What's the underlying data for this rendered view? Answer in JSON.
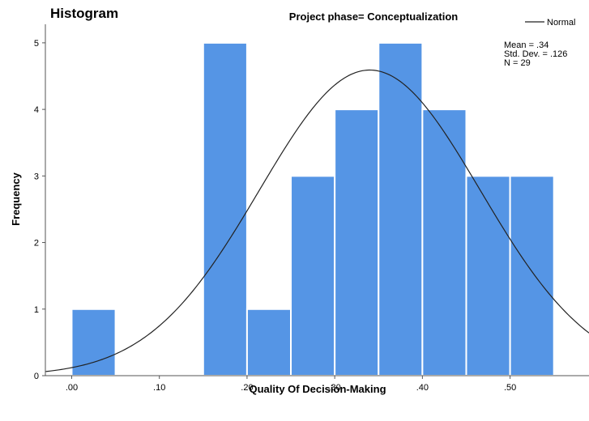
{
  "chart_data": {
    "type": "bar",
    "title": "Histogram",
    "subtitle": "Project phase= Conceptualization",
    "xlabel": "Quality Of Decision-Making",
    "ylabel": "Frequency",
    "xlim": [
      -0.03,
      0.59
    ],
    "ylim": [
      0,
      5.4
    ],
    "x_ticks": [
      0.0,
      0.1,
      0.2,
      0.3,
      0.4,
      0.5
    ],
    "x_tick_labels": [
      ".00",
      ".10",
      ".20",
      ".30",
      ".40",
      ".50"
    ],
    "y_ticks": [
      0,
      1,
      2,
      3,
      4,
      5
    ],
    "y_tick_labels": [
      "0",
      "1",
      "2",
      "3",
      "4",
      "5"
    ],
    "bin_width": 0.05,
    "bins": [
      {
        "start": 0.0,
        "end": 0.05,
        "count": 1
      },
      {
        "start": 0.15,
        "end": 0.2,
        "count": 5
      },
      {
        "start": 0.2,
        "end": 0.25,
        "count": 1
      },
      {
        "start": 0.25,
        "end": 0.3,
        "count": 3
      },
      {
        "start": 0.3,
        "end": 0.35,
        "count": 4
      },
      {
        "start": 0.35,
        "end": 0.4,
        "count": 5
      },
      {
        "start": 0.4,
        "end": 0.45,
        "count": 4
      },
      {
        "start": 0.45,
        "end": 0.5,
        "count": 3
      },
      {
        "start": 0.5,
        "end": 0.55,
        "count": 3
      }
    ],
    "normal_curve": {
      "legend_label": "Normal",
      "mean": 0.34,
      "std_dev": 0.126,
      "n": 29
    },
    "stats_text": [
      "Mean = .34",
      "Std. Dev. = .126",
      "N = 29"
    ],
    "legend_position": "top-right",
    "grid": false,
    "bar_color": "#5595e5",
    "bar_edge_color": "#ffffff",
    "curve_color": "#222222"
  }
}
